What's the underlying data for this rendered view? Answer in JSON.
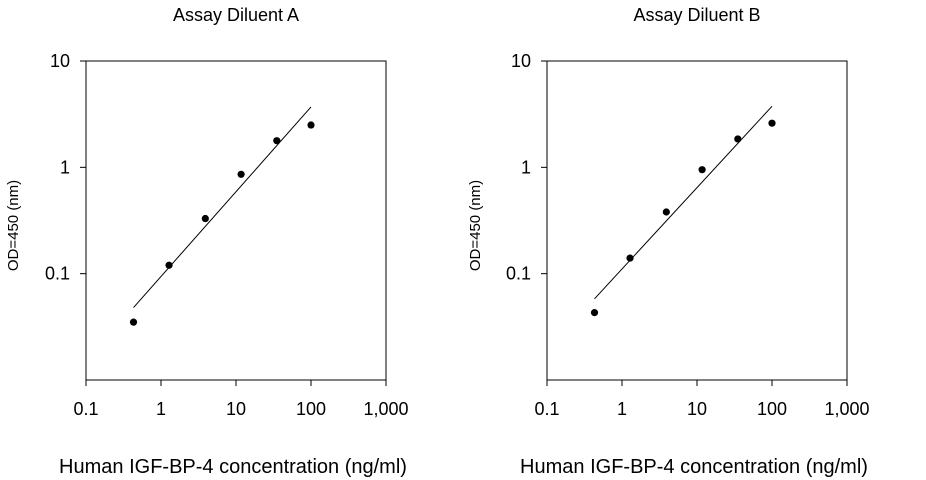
{
  "chart_data": [
    {
      "type": "scatter",
      "title": "Assay Diluent A",
      "xlabel": "Human IGF-BP-4 concentration (ng/ml)",
      "ylabel": "OD=450 (nm)",
      "xscale": "log",
      "yscale": "log",
      "xlim": [
        0.1,
        1000
      ],
      "ylim": [
        0.01,
        10
      ],
      "xticks": [
        0.1,
        1,
        10,
        100,
        1000
      ],
      "xtick_labels": [
        "0.1",
        "1",
        "10",
        "100",
        "1,000"
      ],
      "yticks": [
        0.1,
        1,
        10
      ],
      "ytick_labels": [
        "0.1",
        "1",
        "10"
      ],
      "grid": false,
      "points": {
        "x": [
          0.43,
          1.28,
          3.9,
          11.7,
          35,
          100
        ],
        "y": [
          0.035,
          0.12,
          0.33,
          0.86,
          1.78,
          2.5
        ]
      },
      "fit_line": {
        "x": [
          0.43,
          100
        ],
        "y": [
          0.048,
          3.7
        ]
      }
    },
    {
      "type": "scatter",
      "title": "Assay Diluent B",
      "xlabel": "Human IGF-BP-4 concentration (ng/ml)",
      "ylabel": "OD=450 (nm)",
      "xscale": "log",
      "yscale": "log",
      "xlim": [
        0.1,
        1000
      ],
      "ylim": [
        0.01,
        10
      ],
      "xticks": [
        0.1,
        1,
        10,
        100,
        1000
      ],
      "xtick_labels": [
        "0.1",
        "1",
        "10",
        "100",
        "1,000"
      ],
      "yticks": [
        0.1,
        1,
        10
      ],
      "ytick_labels": [
        "0.1",
        "1",
        "10"
      ],
      "grid": false,
      "points": {
        "x": [
          0.43,
          1.28,
          3.9,
          11.7,
          35,
          100
        ],
        "y": [
          0.043,
          0.14,
          0.38,
          0.95,
          1.85,
          2.6
        ]
      },
      "fit_line": {
        "x": [
          0.43,
          100
        ],
        "y": [
          0.058,
          3.75
        ]
      }
    }
  ]
}
